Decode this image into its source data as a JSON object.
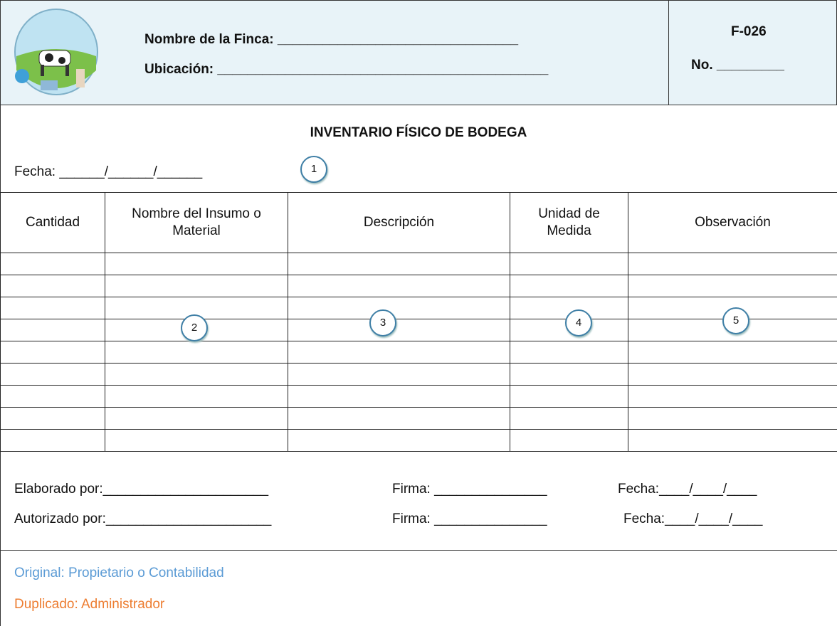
{
  "header": {
    "farm_label": "Nombre de la Finca:",
    "farm_blank": "________________________________",
    "location_label": "Ubicación:",
    "location_blank": "____________________________________________",
    "form_code": "F-026",
    "number_label": "No.",
    "number_blank": "_________"
  },
  "title": "INVENTARIO FÍSICO DE BODEGA",
  "date": {
    "label": "Fecha:",
    "blank": "______/______/______"
  },
  "table": {
    "columns": [
      "Cantidad",
      "Nombre del Insumo o Material",
      "Descripción",
      "Unidad de Medida",
      "Observación"
    ]
  },
  "callouts": [
    "1",
    "2",
    "3",
    "4",
    "5"
  ],
  "signatures": [
    {
      "label": "Elaborado por:",
      "blank": "______________________",
      "sign_label": "Firma:",
      "sign_blank": "_______________",
      "date_label": "Fecha:",
      "date_blank": "____/____/____"
    },
    {
      "label": "Autorizado por:",
      "blank": "______________________",
      "sign_label": "Firma:",
      "sign_blank": "_______________",
      "date_label": "Fecha:",
      "date_blank": "____/____/____"
    }
  ],
  "copies": {
    "original": "Original: Propietario o Contabilidad",
    "duplicate": "Duplicado: Administrador"
  }
}
